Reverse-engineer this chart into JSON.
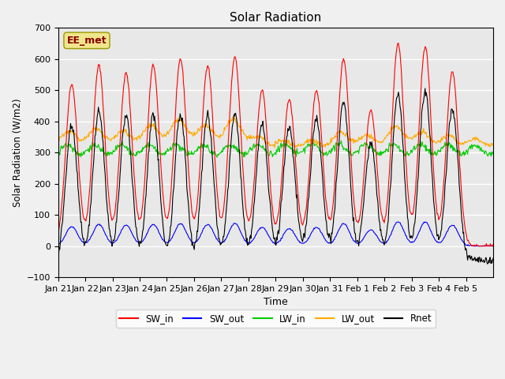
{
  "title": "Solar Radiation",
  "xlabel": "Time",
  "ylabel": "Solar Radiation (W/m2)",
  "ylim": [
    -100,
    700
  ],
  "yticks": [
    -100,
    0,
    100,
    200,
    300,
    400,
    500,
    600,
    700
  ],
  "bg_color": "#e8e8e8",
  "legend_labels": [
    "SW_in",
    "SW_out",
    "LW_in",
    "LW_out",
    "Rnet"
  ],
  "legend_colors": [
    "#ff0000",
    "#0000ff",
    "#00cc00",
    "#ffaa00",
    "#000000"
  ],
  "site_label": "EE_met",
  "site_label_color": "#8b0000",
  "site_label_bg": "#f0e68c",
  "grid_color": "#ffffff",
  "tick_dates": [
    "Jan 21",
    "Jan 22",
    "Jan 23",
    "Jan 24",
    "Jan 25",
    "Jan 26",
    "Jan 27",
    "Jan 28",
    "Jan 29",
    "Jan 30",
    "Jan 31",
    "Feb 1",
    "Feb 2",
    "Feb 3",
    "Feb 4",
    "Feb 5"
  ]
}
